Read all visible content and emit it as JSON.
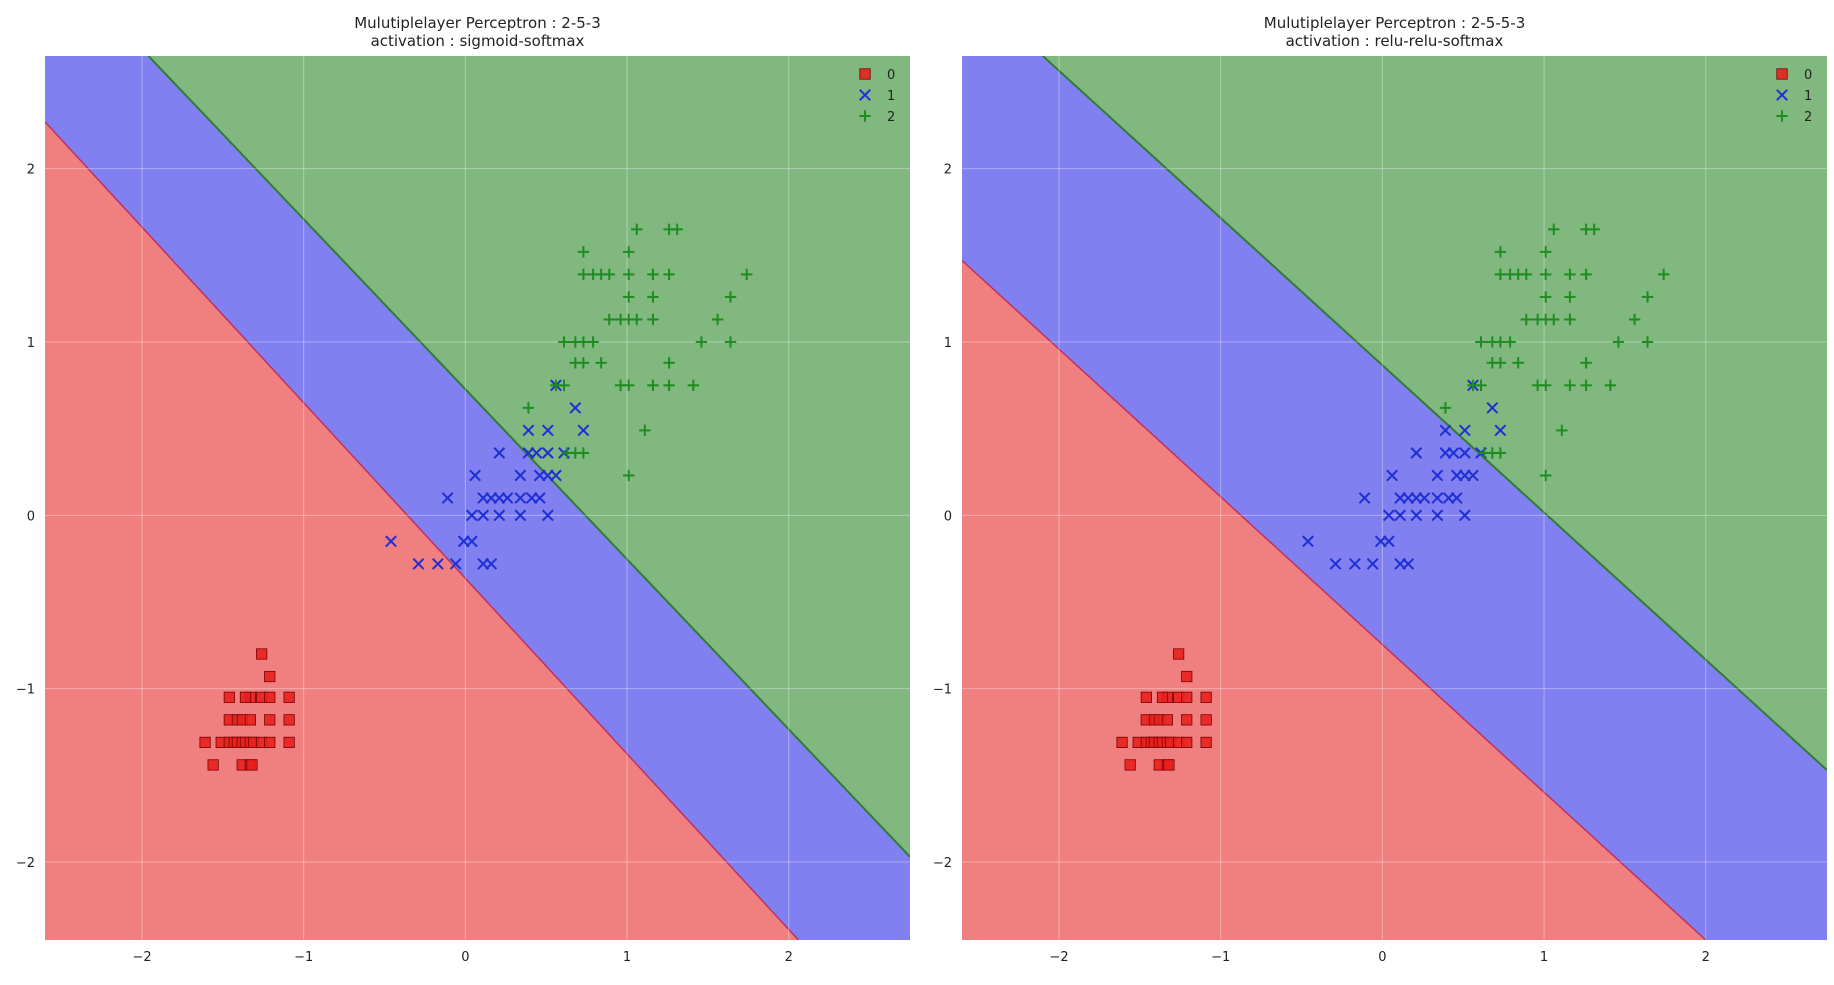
{
  "chart_data": [
    {
      "type": "scatter",
      "title_line1": "Mulutiplelayer Perceptron : 2-5-3",
      "title_line2": "activation : sigmoid-softmax",
      "xlabel": "",
      "ylabel": "",
      "xlim": [
        -2.6,
        2.75
      ],
      "ylim": [
        -2.45,
        2.65
      ],
      "xticks": [
        -2,
        -1,
        0,
        1,
        2
      ],
      "yticks": [
        -2,
        -1,
        0,
        1,
        2
      ],
      "grid": true,
      "legend_placement": "top-right",
      "legend": [
        "0",
        "1",
        "2"
      ],
      "decision_regions": [
        {
          "class": "0",
          "color": "#f08080",
          "note": "below boundary 0/1"
        },
        {
          "class": "1",
          "color": "#8080f0",
          "note": "between boundaries"
        },
        {
          "class": "2",
          "color": "#80b880",
          "note": "above boundary 1/2"
        }
      ],
      "boundaries": [
        {
          "between": [
            "0",
            "1"
          ],
          "color": "#c03060",
          "points": [
            [
              -2.6,
              2.27
            ],
            [
              2.06,
              -2.45
            ]
          ]
        },
        {
          "between": [
            "1",
            "2"
          ],
          "color": "#2e7d32",
          "points": [
            [
              -1.96,
              2.65
            ],
            [
              2.75,
              -1.97
            ]
          ]
        }
      ]
    },
    {
      "type": "scatter",
      "title_line1": "Mulutiplelayer Perceptron : 2-5-5-3",
      "title_line2": "activation : relu-relu-softmax",
      "xlabel": "",
      "ylabel": "",
      "xlim": [
        -2.6,
        2.75
      ],
      "ylim": [
        -2.45,
        2.65
      ],
      "xticks": [
        -2,
        -1,
        0,
        1,
        2
      ],
      "yticks": [
        -2,
        -1,
        0,
        1,
        2
      ],
      "grid": true,
      "legend_placement": "top-right",
      "legend": [
        "0",
        "1",
        "2"
      ],
      "decision_regions": [
        {
          "class": "0",
          "color": "#f08080",
          "note": "below boundary 0/1"
        },
        {
          "class": "1",
          "color": "#8080f0",
          "note": "between boundaries"
        },
        {
          "class": "2",
          "color": "#80b880",
          "note": "above boundary 1/2"
        }
      ],
      "boundaries": [
        {
          "between": [
            "0",
            "1"
          ],
          "color": "#c03060",
          "points": [
            [
              -2.6,
              1.47
            ],
            [
              2.0,
              -2.45
            ]
          ]
        },
        {
          "between": [
            "1",
            "2"
          ],
          "color": "#2e7d32",
          "points": [
            [
              -2.1,
              2.65
            ],
            [
              2.75,
              -1.47
            ]
          ]
        }
      ]
    }
  ],
  "series": [
    {
      "name": "0",
      "marker": "square",
      "color": "#e8201e",
      "points": [
        [
          -1.26,
          -0.8
        ],
        [
          -1.21,
          -0.93
        ],
        [
          -1.33,
          -1.05
        ],
        [
          -1.36,
          -1.05
        ],
        [
          -1.46,
          -1.05
        ],
        [
          -1.26,
          -1.05
        ],
        [
          -1.21,
          -1.05
        ],
        [
          -1.09,
          -1.05
        ],
        [
          -1.46,
          -1.18
        ],
        [
          -1.41,
          -1.18
        ],
        [
          -1.38,
          -1.18
        ],
        [
          -1.33,
          -1.18
        ],
        [
          -1.21,
          -1.18
        ],
        [
          -1.09,
          -1.18
        ],
        [
          -1.61,
          -1.31
        ],
        [
          -1.51,
          -1.31
        ],
        [
          -1.46,
          -1.31
        ],
        [
          -1.43,
          -1.31
        ],
        [
          -1.41,
          -1.31
        ],
        [
          -1.38,
          -1.31
        ],
        [
          -1.36,
          -1.31
        ],
        [
          -1.33,
          -1.31
        ],
        [
          -1.31,
          -1.31
        ],
        [
          -1.26,
          -1.31
        ],
        [
          -1.21,
          -1.31
        ],
        [
          -1.09,
          -1.31
        ],
        [
          -1.56,
          -1.44
        ],
        [
          -1.38,
          -1.44
        ],
        [
          -1.33,
          -1.44
        ],
        [
          -1.32,
          -1.44
        ]
      ]
    },
    {
      "name": "1",
      "marker": "x",
      "color": "#1f2fd6",
      "points": [
        [
          -0.46,
          -0.15
        ],
        [
          -0.29,
          -0.28
        ],
        [
          -0.17,
          -0.28
        ],
        [
          -0.06,
          -0.28
        ],
        [
          0.11,
          -0.28
        ],
        [
          0.16,
          -0.28
        ],
        [
          -0.11,
          0.1
        ],
        [
          0.06,
          0.23
        ],
        [
          -0.01,
          -0.15
        ],
        [
          0.04,
          -0.15
        ],
        [
          0.04,
          0.0
        ],
        [
          0.11,
          0.0
        ],
        [
          0.21,
          0.0
        ],
        [
          0.34,
          0.0
        ],
        [
          0.51,
          0.0
        ],
        [
          0.11,
          0.1
        ],
        [
          0.16,
          0.1
        ],
        [
          0.21,
          0.1
        ],
        [
          0.26,
          0.1
        ],
        [
          0.34,
          0.1
        ],
        [
          0.41,
          0.1
        ],
        [
          0.46,
          0.1
        ],
        [
          0.21,
          0.36
        ],
        [
          0.34,
          0.23
        ],
        [
          0.46,
          0.23
        ],
        [
          0.51,
          0.23
        ],
        [
          0.56,
          0.23
        ],
        [
          0.39,
          0.36
        ],
        [
          0.44,
          0.36
        ],
        [
          0.51,
          0.36
        ],
        [
          0.61,
          0.36
        ],
        [
          0.39,
          0.49
        ],
        [
          0.51,
          0.49
        ],
        [
          0.73,
          0.49
        ],
        [
          0.68,
          0.62
        ],
        [
          0.56,
          0.75
        ]
      ]
    },
    {
      "name": "2",
      "marker": "plus",
      "color": "#1e8c1e",
      "points": [
        [
          1.06,
          1.65
        ],
        [
          1.26,
          1.65
        ],
        [
          1.31,
          1.65
        ],
        [
          0.73,
          1.52
        ],
        [
          1.01,
          1.52
        ],
        [
          0.73,
          1.39
        ],
        [
          0.79,
          1.39
        ],
        [
          0.84,
          1.39
        ],
        [
          0.89,
          1.39
        ],
        [
          1.01,
          1.39
        ],
        [
          1.16,
          1.39
        ],
        [
          1.26,
          1.39
        ],
        [
          1.74,
          1.39
        ],
        [
          1.01,
          1.26
        ],
        [
          1.16,
          1.26
        ],
        [
          1.64,
          1.26
        ],
        [
          0.89,
          1.13
        ],
        [
          0.96,
          1.13
        ],
        [
          1.01,
          1.13
        ],
        [
          1.06,
          1.13
        ],
        [
          1.16,
          1.13
        ],
        [
          1.56,
          1.13
        ],
        [
          0.61,
          1.0
        ],
        [
          0.68,
          1.0
        ],
        [
          0.73,
          1.0
        ],
        [
          0.79,
          1.0
        ],
        [
          1.46,
          1.0
        ],
        [
          1.64,
          1.0
        ],
        [
          0.68,
          0.88
        ],
        [
          0.73,
          0.88
        ],
        [
          0.84,
          0.88
        ],
        [
          1.26,
          0.88
        ],
        [
          0.56,
          0.75
        ],
        [
          0.61,
          0.75
        ],
        [
          0.96,
          0.75
        ],
        [
          1.01,
          0.75
        ],
        [
          1.16,
          0.75
        ],
        [
          1.26,
          0.75
        ],
        [
          1.41,
          0.75
        ],
        [
          0.39,
          0.62
        ],
        [
          0.63,
          0.36
        ],
        [
          0.68,
          0.36
        ],
        [
          0.73,
          0.36
        ],
        [
          1.11,
          0.49
        ],
        [
          1.01,
          0.23
        ]
      ]
    }
  ]
}
